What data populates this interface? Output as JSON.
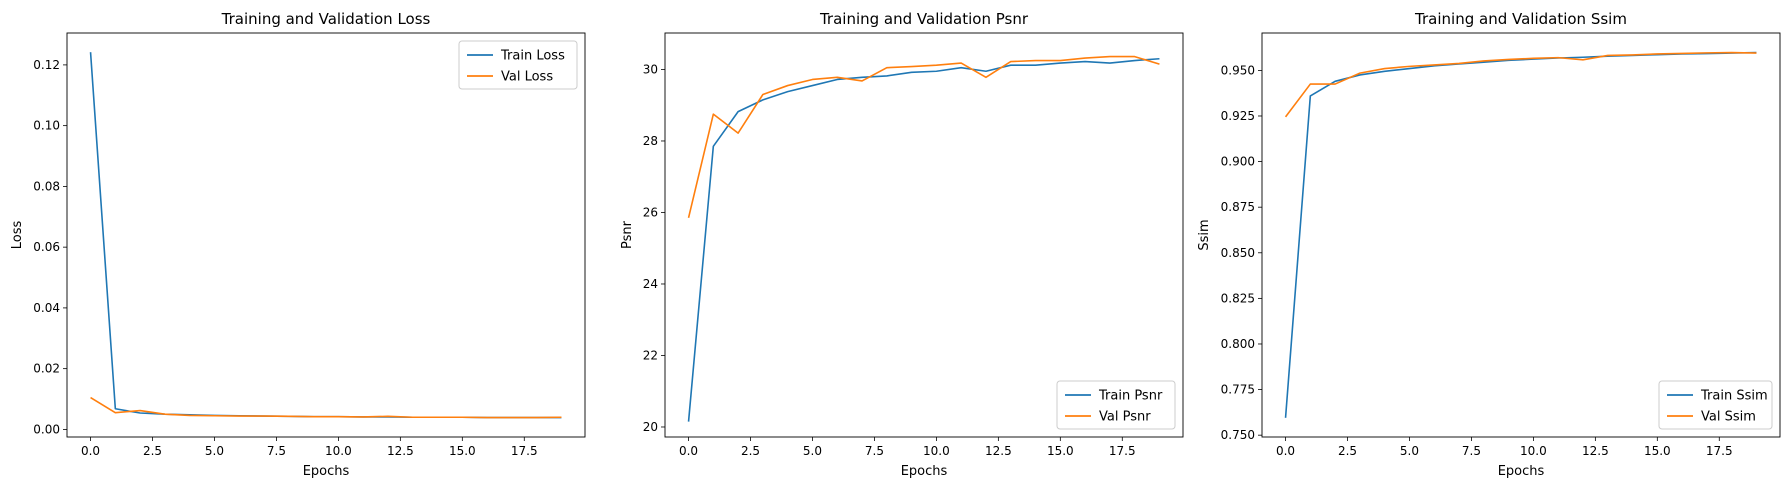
{
  "chart_data": [
    {
      "type": "line",
      "title": "Training and Validation Loss",
      "xlabel": "Epochs",
      "ylabel": "Loss",
      "xlim": [
        -0.95,
        19.95
      ],
      "ylim": [
        -0.0025,
        0.1305
      ],
      "xticks": [
        0.0,
        2.5,
        5.0,
        7.5,
        10.0,
        12.5,
        15.0,
        17.5
      ],
      "xtick_labels": [
        "0.0",
        "2.5",
        "5.0",
        "7.5",
        "10.0",
        "12.5",
        "15.0",
        "17.5"
      ],
      "yticks": [
        0.0,
        0.02,
        0.04,
        0.06,
        0.08,
        0.1,
        0.12
      ],
      "ytick_labels": [
        "0.00",
        "0.02",
        "0.04",
        "0.06",
        "0.08",
        "0.10",
        "0.12"
      ],
      "legend_position": "top-right",
      "grid": false,
      "x": [
        0,
        1,
        2,
        3,
        4,
        5,
        6,
        7,
        8,
        9,
        10,
        11,
        12,
        13,
        14,
        15,
        16,
        17,
        18,
        19
      ],
      "series": [
        {
          "name": "Train Loss",
          "color": "#1f77b4",
          "values": [
            0.1242,
            0.0068,
            0.0054,
            0.005,
            0.0048,
            0.0046,
            0.0045,
            0.0044,
            0.0043,
            0.0042,
            0.0042,
            0.0041,
            0.0041,
            0.004,
            0.004,
            0.004,
            0.0039,
            0.0039,
            0.0039,
            0.0039
          ]
        },
        {
          "name": "Val Loss",
          "color": "#ff7f0e",
          "values": [
            0.0105,
            0.0055,
            0.0062,
            0.005,
            0.0046,
            0.0045,
            0.0044,
            0.0044,
            0.0043,
            0.0042,
            0.0042,
            0.0041,
            0.0043,
            0.004,
            0.004,
            0.004,
            0.0039,
            0.0039,
            0.0039,
            0.004
          ]
        }
      ]
    },
    {
      "type": "line",
      "title": "Training and Validation Psnr",
      "xlabel": "Epochs",
      "ylabel": "Psnr",
      "xlim": [
        -0.95,
        19.95
      ],
      "ylim": [
        19.72,
        31.02
      ],
      "xticks": [
        0.0,
        2.5,
        5.0,
        7.5,
        10.0,
        12.5,
        15.0,
        17.5
      ],
      "xtick_labels": [
        "0.0",
        "2.5",
        "5.0",
        "7.5",
        "10.0",
        "12.5",
        "15.0",
        "17.5"
      ],
      "yticks": [
        20,
        22,
        24,
        26,
        28,
        30
      ],
      "ytick_labels": [
        "20",
        "22",
        "24",
        "26",
        "28",
        "30"
      ],
      "legend_position": "lower-right",
      "grid": false,
      "x": [
        0,
        1,
        2,
        3,
        4,
        5,
        6,
        7,
        8,
        9,
        10,
        11,
        12,
        13,
        14,
        15,
        16,
        17,
        18,
        19
      ],
      "series": [
        {
          "name": "Train Psnr",
          "color": "#1f77b4",
          "values": [
            20.15,
            27.85,
            28.82,
            29.15,
            29.38,
            29.55,
            29.72,
            29.78,
            29.82,
            29.92,
            29.95,
            30.05,
            29.95,
            30.12,
            30.12,
            30.18,
            30.22,
            30.18,
            30.25,
            30.3
          ]
        },
        {
          "name": "Val Psnr",
          "color": "#ff7f0e",
          "values": [
            25.85,
            28.75,
            28.22,
            29.3,
            29.55,
            29.72,
            29.78,
            29.68,
            30.05,
            30.08,
            30.12,
            30.18,
            29.78,
            30.22,
            30.25,
            30.25,
            30.32,
            30.36,
            30.36,
            30.15
          ]
        }
      ]
    },
    {
      "type": "line",
      "title": "Training and Validation Ssim",
      "xlabel": "Epochs",
      "ylabel": "Ssim",
      "xlim": [
        -0.95,
        19.95
      ],
      "ylim": [
        0.749,
        0.9705
      ],
      "xticks": [
        0.0,
        2.5,
        5.0,
        7.5,
        10.0,
        12.5,
        15.0,
        17.5
      ],
      "xtick_labels": [
        "0.0",
        "2.5",
        "5.0",
        "7.5",
        "10.0",
        "12.5",
        "15.0",
        "17.5"
      ],
      "yticks": [
        0.75,
        0.775,
        0.8,
        0.825,
        0.85,
        0.875,
        0.9,
        0.925,
        0.95
      ],
      "ytick_labels": [
        "0.750",
        "0.775",
        "0.800",
        "0.825",
        "0.850",
        "0.875",
        "0.900",
        "0.925",
        "0.950"
      ],
      "legend_position": "lower-right",
      "grid": false,
      "x": [
        0,
        1,
        2,
        3,
        4,
        5,
        6,
        7,
        8,
        9,
        10,
        11,
        12,
        13,
        14,
        15,
        16,
        17,
        18,
        19
      ],
      "series": [
        {
          "name": "Train Ssim",
          "color": "#1f77b4",
          "values": [
            0.7595,
            0.936,
            0.944,
            0.9475,
            0.9495,
            0.951,
            0.9525,
            0.9535,
            0.9545,
            0.9555,
            0.9562,
            0.9568,
            0.9572,
            0.9578,
            0.9582,
            0.9586,
            0.959,
            0.9592,
            0.9595,
            0.9598
          ]
        },
        {
          "name": "Val Ssim",
          "color": "#ff7f0e",
          "values": [
            0.9245,
            0.9425,
            0.9425,
            0.9485,
            0.951,
            0.9522,
            0.953,
            0.9538,
            0.9552,
            0.956,
            0.9566,
            0.957,
            0.9558,
            0.9582,
            0.9585,
            0.959,
            0.9593,
            0.9596,
            0.9598,
            0.9595
          ]
        }
      ]
    }
  ]
}
